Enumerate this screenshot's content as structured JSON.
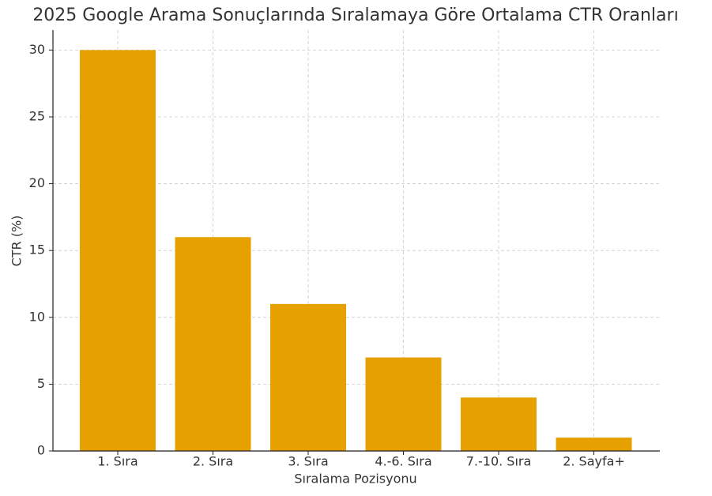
{
  "chart_data": {
    "type": "bar",
    "title": "2025 Google Arama Sonuçlarında Sıralamaya Göre Ortalama CTR Oranları",
    "x_label": "Sıralama Pozisyonu",
    "y_label": "CTR (%)",
    "categories": [
      "1. Sıra",
      "2. Sıra",
      "3. Sıra",
      "4.-6. Sıra",
      "7.-10. Sıra",
      "2. Sayfa+"
    ],
    "values": [
      30,
      16,
      11,
      7,
      4,
      1
    ],
    "color": "#e6a000",
    "ylim": [
      0,
      31.5
    ],
    "yticks": [
      0,
      5,
      10,
      15,
      20,
      25,
      30
    ],
    "grid": true
  }
}
